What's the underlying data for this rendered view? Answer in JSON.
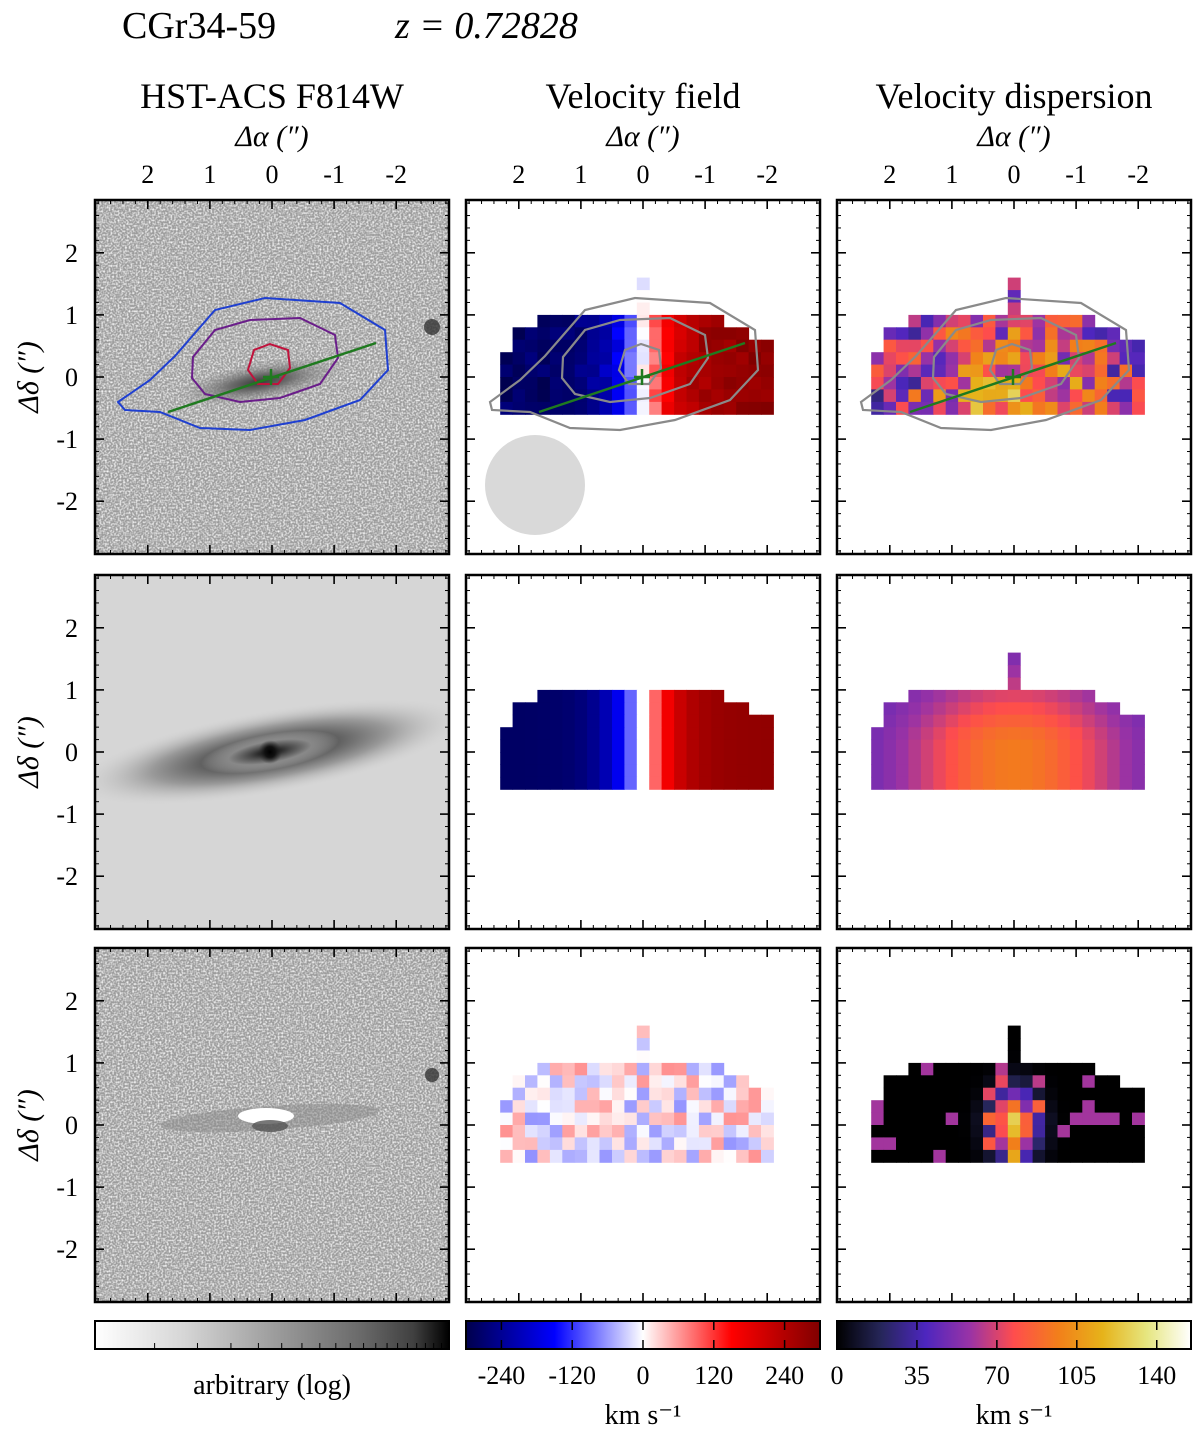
{
  "header": {
    "object": "CGr34-59",
    "redshift_label": "z = 0.72828",
    "redshift": 0.72828
  },
  "columns": [
    {
      "title": "HST-ACS F814W",
      "xlabel": "Δα (″)"
    },
    {
      "title": "Velocity field",
      "xlabel": "Δα (″)"
    },
    {
      "title": "Velocity dispersion",
      "xlabel": "Δα (″)"
    }
  ],
  "rows": [
    {
      "ylabel": "Δδ (″)"
    },
    {
      "ylabel": "Δδ (″)"
    },
    {
      "ylabel": "Δδ (″)"
    }
  ],
  "axes": {
    "x_ticks": [
      "2",
      "1",
      "0",
      "-1",
      "-2"
    ],
    "x_tick_values": [
      2,
      1,
      0,
      -1,
      -2
    ],
    "y_ticks": [
      "2",
      "1",
      "0",
      "-1",
      "-2"
    ],
    "y_tick_values": [
      2,
      1,
      0,
      -1,
      -2
    ],
    "xlim": [
      2.85,
      -2.85
    ],
    "ylim": [
      -2.85,
      2.85
    ]
  },
  "colorbars": [
    {
      "label": "arbitrary (log)",
      "ticks": [],
      "scale": "log"
    },
    {
      "label": "km s⁻¹",
      "ticks": [
        "-240",
        "-120",
        "0",
        "120",
        "240"
      ],
      "tick_values": [
        -240,
        -120,
        0,
        120,
        240
      ],
      "range": [
        -300,
        300
      ],
      "colormap": "seismic"
    },
    {
      "label": "km s⁻¹",
      "ticks": [
        "0",
        "35",
        "70",
        "105",
        "140"
      ],
      "tick_values": [
        0,
        35,
        70,
        105,
        140
      ],
      "range": [
        0,
        155
      ],
      "colormap": "CMRmap"
    }
  ],
  "overlays": {
    "major_axis_color": "#1f7a1f",
    "contour_colors_hst": [
      "#1f3fd0",
      "#6a1d8a",
      "#c0123c"
    ],
    "contour_color_maps": "#8a8a8a",
    "psf_color": "#d9d9d9"
  },
  "chart_data": {
    "type": "heatmap",
    "panels": [
      "observed",
      "model",
      "residual"
    ],
    "quantities": [
      "HST-ACS F814W image",
      "Velocity field",
      "Velocity dispersion"
    ],
    "units": [
      "arbitrary (log)",
      "km s⁻¹",
      "km s⁻¹"
    ]
  }
}
